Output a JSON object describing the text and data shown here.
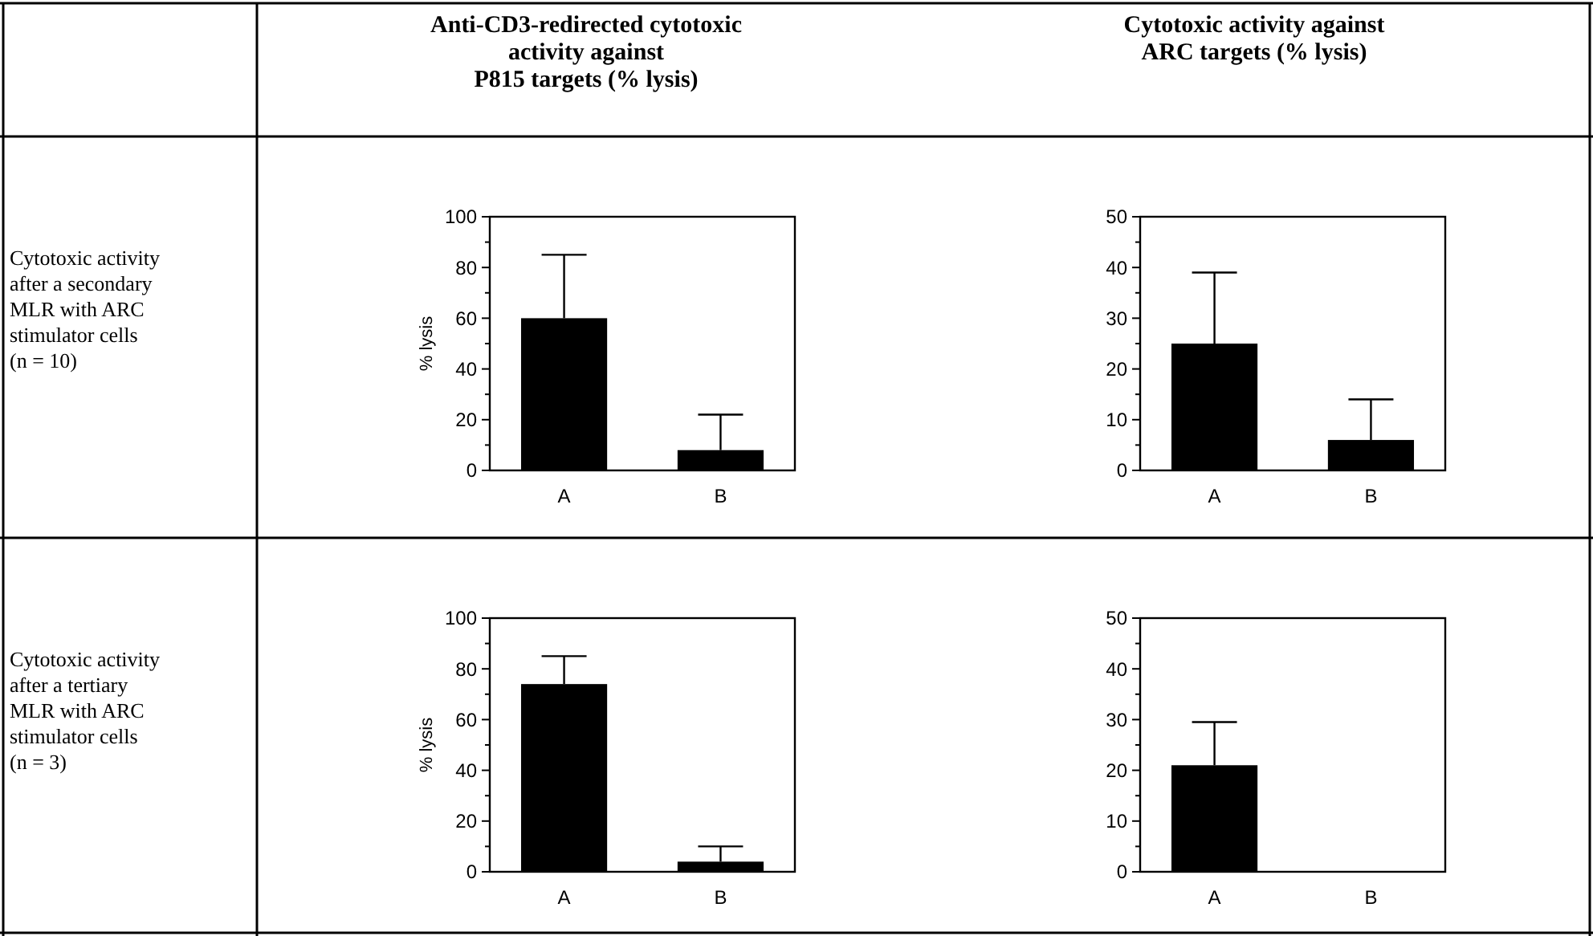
{
  "chart_data": [
    {
      "type": "bar",
      "title": "Anti-CD3-redirected  cytotoxic\nactivity  against\nP815  targets  (%  lysis)",
      "annotations": [
        "Cytotoxic activity\nafter a secondary\nMLR with ARC\nstimulator cells\n(n = 10)"
      ],
      "ylabel": "% lysis",
      "categories": [
        "A",
        "B"
      ],
      "values": [
        60,
        8
      ],
      "errors": [
        [
          60,
          85
        ],
        [
          8,
          22
        ]
      ],
      "color": "#000000",
      "ylim": [
        0,
        100
      ],
      "yticks": [
        0,
        {
          "value": 10,
          "label": null
        },
        20,
        {
          "value": 30,
          "label": null
        },
        40,
        {
          "value": 50,
          "label": null
        },
        60,
        {
          "value": 70,
          "label": null
        },
        80,
        {
          "value": 90,
          "label": null
        },
        100
      ]
    },
    {
      "type": "bar",
      "title": "Cytotoxic  activity  against\nARC  targets  (%  lysis)",
      "categories": [
        "A",
        "B"
      ],
      "values": [
        25,
        6
      ],
      "errors": [
        [
          25,
          39
        ],
        [
          6,
          14
        ]
      ],
      "color": "#000000",
      "ylim": [
        0,
        50
      ],
      "yticks": [
        0,
        {
          "value": 5,
          "label": null
        },
        10,
        {
          "value": 15,
          "label": null
        },
        20,
        {
          "value": 25,
          "label": null
        },
        30,
        {
          "value": 35,
          "label": null
        },
        40,
        {
          "value": 45,
          "label": null
        },
        50
      ]
    },
    {
      "type": "bar",
      "annotations": [
        "Cytotoxic activity\nafter a tertiary\nMLR with ARC\nstimulator cells\n(n = 3)"
      ],
      "ylabel": "% lysis",
      "categories": [
        "A",
        "B"
      ],
      "values": [
        74,
        4
      ],
      "errors": [
        [
          74,
          85
        ],
        [
          4,
          10
        ]
      ],
      "color": "#000000",
      "ylim": [
        0,
        100
      ],
      "yticks": [
        0,
        {
          "value": 10,
          "label": null
        },
        20,
        {
          "value": 30,
          "label": null
        },
        40,
        {
          "value": 50,
          "label": null
        },
        60,
        {
          "value": 70,
          "label": null
        },
        80,
        {
          "value": 90,
          "label": null
        },
        100
      ]
    },
    {
      "type": "bar",
      "categories": [
        "A",
        "B"
      ],
      "values": [
        21,
        0
      ],
      "errors": [
        [
          21,
          29.5
        ],
        null
      ],
      "color": "#000000",
      "ylim": [
        0,
        50
      ],
      "yticks": [
        0,
        {
          "value": 5,
          "label": null
        },
        10,
        {
          "value": 15,
          "label": null
        },
        20,
        {
          "value": 25,
          "label": null
        },
        30,
        {
          "value": 35,
          "label": null
        },
        40,
        {
          "value": 45,
          "label": null
        },
        50
      ]
    }
  ]
}
